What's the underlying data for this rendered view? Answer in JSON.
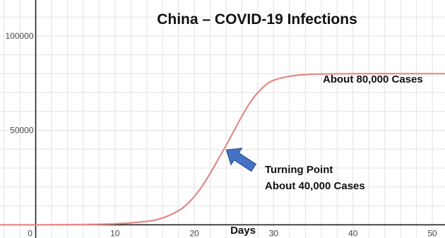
{
  "chart_data": {
    "type": "line",
    "title": "China – COVID-19 Infections",
    "xlabel": "Days",
    "ylabel": "",
    "xlim": [
      -4.5,
      51.6
    ],
    "ylim": [
      -7000,
      119000
    ],
    "x_ticks": [
      0,
      10,
      20,
      30,
      40,
      50
    ],
    "x_tick_labels": [
      "0",
      "10",
      "20",
      "30",
      "40",
      "50"
    ],
    "y_ticks": [
      50000,
      100000
    ],
    "y_tick_labels": [
      "50000",
      "100000"
    ],
    "grid": true,
    "series": [
      {
        "color": "#e08a86",
        "x": [
          -4.5,
          0,
          5,
          10,
          14,
          16,
          18,
          19,
          20,
          21,
          22,
          23,
          24,
          25,
          26,
          27,
          28,
          29,
          30,
          32,
          34,
          36,
          40,
          45,
          51.6
        ],
        "y": [
          0,
          0,
          100,
          500,
          1800,
          3600,
          7400,
          10600,
          15000,
          20600,
          27300,
          34600,
          42000,
          49800,
          57500,
          64500,
          70000,
          74000,
          76500,
          78600,
          79500,
          79800,
          80000,
          80000,
          80000
        ]
      }
    ],
    "annotations": [
      {
        "id": "plateau",
        "text": "About 80,000 Cases"
      },
      {
        "id": "turning-point",
        "lines": [
          "Turning Point",
          "About 40,000 Cases"
        ],
        "arrow_target": {
          "x": 23.5,
          "y": 40000
        }
      }
    ]
  },
  "colors": {
    "curve": "#e08a86",
    "arrow": "#4472c4",
    "arrow_outline": "#2f528f",
    "grid": "#e3e3e3",
    "axis": "#222222",
    "text": "#111111",
    "tick_text": "#4a4a4a"
  }
}
